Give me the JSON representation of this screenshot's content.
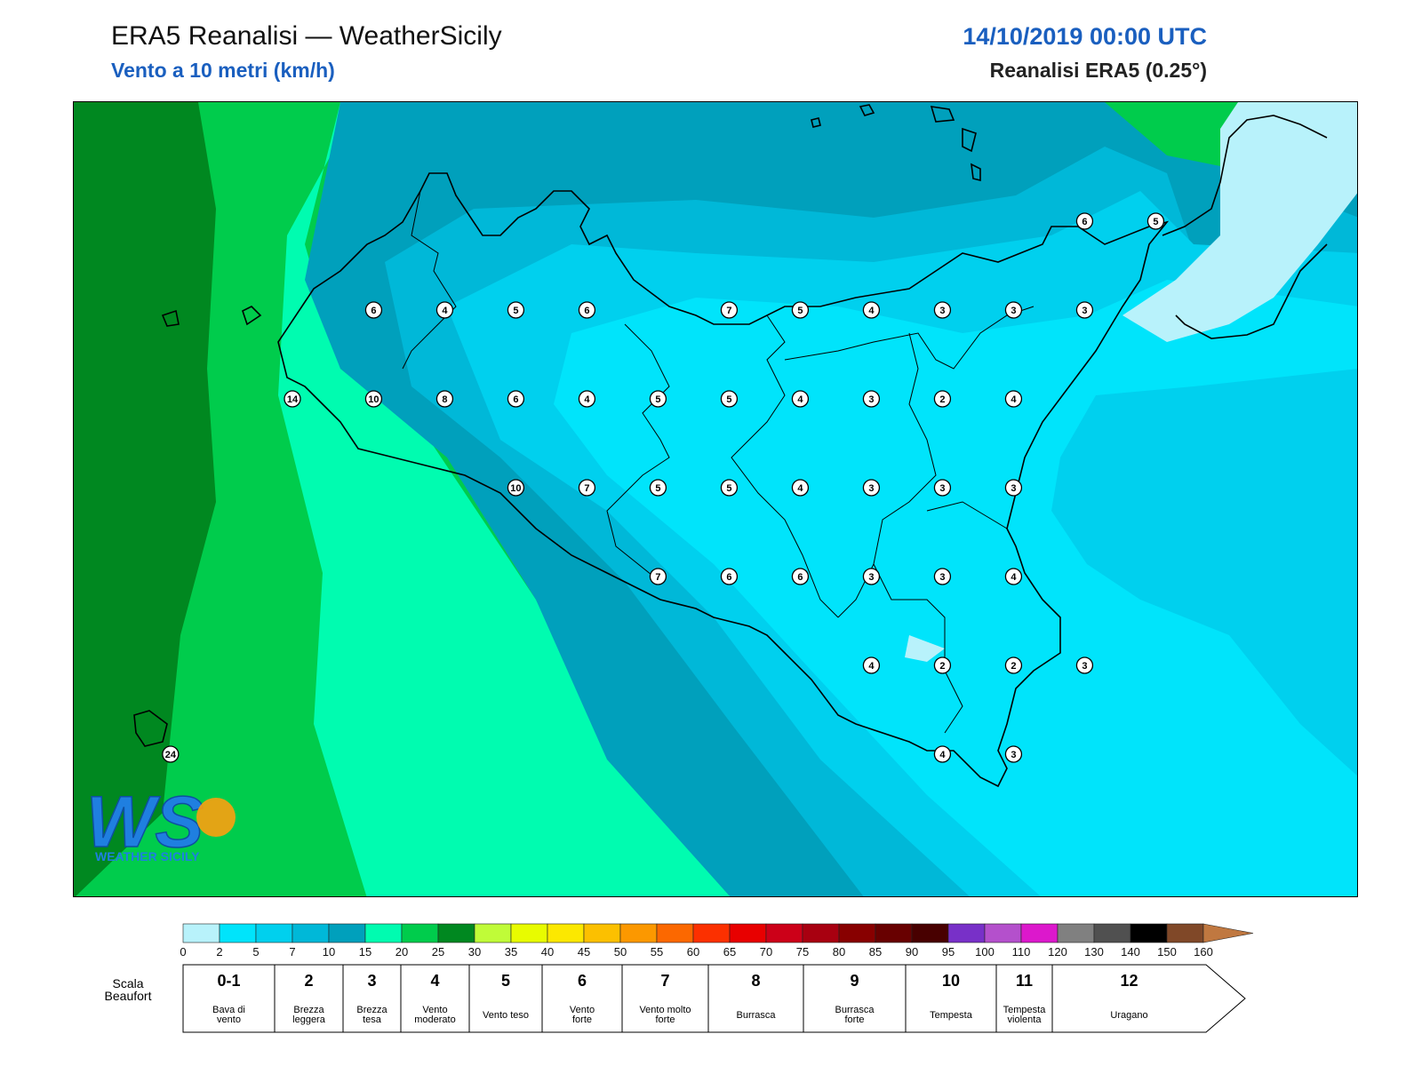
{
  "header": {
    "title": "ERA5 Reanalisi — WeatherSicily",
    "subtitle": "Vento a 10 metri (km/h)",
    "datetime": "14/10/2019 00:00 UTC",
    "source": "Reanalisi ERA5 (0.25°)"
  },
  "logo": {
    "text": "WS",
    "tagline": "WEATHER SICILY"
  },
  "stations": [
    {
      "v": 14,
      "lon": 12.5,
      "lat": 38.0
    },
    {
      "v": 6,
      "lon": 12.9,
      "lat": 38.25
    },
    {
      "v": 4,
      "lon": 13.25,
      "lat": 38.25
    },
    {
      "v": 5,
      "lon": 13.6,
      "lat": 38.25
    },
    {
      "v": 6,
      "lon": 13.95,
      "lat": 38.25
    },
    {
      "v": 7,
      "lon": 14.65,
      "lat": 38.25
    },
    {
      "v": 5,
      "lon": 15.0,
      "lat": 38.25
    },
    {
      "v": 4,
      "lon": 15.35,
      "lat": 38.25
    },
    {
      "v": 3,
      "lon": 15.7,
      "lat": 38.25
    },
    {
      "v": 3,
      "lon": 16.05,
      "lat": 38.25
    },
    {
      "v": 3,
      "lon": 16.4,
      "lat": 38.25
    },
    {
      "v": 6,
      "lon": 16.4,
      "lat": 38.5
    },
    {
      "v": 5,
      "lon": 16.75,
      "lat": 38.5
    },
    {
      "v": 10,
      "lon": 12.9,
      "lat": 38.0
    },
    {
      "v": 8,
      "lon": 13.25,
      "lat": 38.0
    },
    {
      "v": 6,
      "lon": 13.6,
      "lat": 38.0
    },
    {
      "v": 4,
      "lon": 13.95,
      "lat": 38.0
    },
    {
      "v": 5,
      "lon": 14.3,
      "lat": 38.0
    },
    {
      "v": 5,
      "lon": 14.65,
      "lat": 38.0
    },
    {
      "v": 4,
      "lon": 15.0,
      "lat": 38.0
    },
    {
      "v": 3,
      "lon": 15.35,
      "lat": 38.0
    },
    {
      "v": 2,
      "lon": 15.7,
      "lat": 38.0
    },
    {
      "v": 4,
      "lon": 16.05,
      "lat": 38.0
    },
    {
      "v": 10,
      "lon": 13.6,
      "lat": 37.75
    },
    {
      "v": 7,
      "lon": 13.95,
      "lat": 37.75
    },
    {
      "v": 5,
      "lon": 14.3,
      "lat": 37.75
    },
    {
      "v": 5,
      "lon": 14.65,
      "lat": 37.75
    },
    {
      "v": 4,
      "lon": 15.0,
      "lat": 37.75
    },
    {
      "v": 3,
      "lon": 15.35,
      "lat": 37.75
    },
    {
      "v": 3,
      "lon": 15.7,
      "lat": 37.75
    },
    {
      "v": 3,
      "lon": 16.05,
      "lat": 37.75
    },
    {
      "v": 7,
      "lon": 14.3,
      "lat": 37.5
    },
    {
      "v": 6,
      "lon": 14.65,
      "lat": 37.5
    },
    {
      "v": 6,
      "lon": 15.0,
      "lat": 37.5
    },
    {
      "v": 3,
      "lon": 15.35,
      "lat": 37.5
    },
    {
      "v": 3,
      "lon": 15.7,
      "lat": 37.5
    },
    {
      "v": 4,
      "lon": 16.05,
      "lat": 37.5
    },
    {
      "v": 4,
      "lon": 15.35,
      "lat": 37.25
    },
    {
      "v": 2,
      "lon": 15.7,
      "lat": 37.25
    },
    {
      "v": 2,
      "lon": 16.05,
      "lat": 37.25
    },
    {
      "v": 3,
      "lon": 16.4,
      "lat": 37.25
    },
    {
      "v": 4,
      "lon": 15.7,
      "lat": 37.0
    },
    {
      "v": 3,
      "lon": 16.05,
      "lat": 37.0
    },
    {
      "v": 24,
      "lon": 11.9,
      "lat": 37.0
    }
  ],
  "colorbar": {
    "levels": [
      0,
      2,
      5,
      7,
      10,
      15,
      20,
      25,
      30,
      35,
      40,
      45,
      50,
      55,
      60,
      65,
      70,
      75,
      80,
      85,
      90,
      95,
      100,
      110,
      120,
      130,
      140,
      150,
      160
    ],
    "labels": [
      "0",
      "2",
      "5",
      "7",
      "10",
      "15",
      "20",
      "25",
      "30",
      "35",
      "40",
      "45",
      "50",
      "55",
      "60",
      "65",
      "70",
      "75",
      "80",
      "85",
      "90",
      "95",
      "100",
      "110",
      "120",
      "130",
      "140",
      "150",
      "160"
    ],
    "colors": [
      "#b8f2fb",
      "#00e4fb",
      "#00d0ee",
      "#00b8d8",
      "#00a0bc",
      "#00fcb0",
      "#00cc4c",
      "#008820",
      "#c0fc38",
      "#e8fc00",
      "#fce800",
      "#fcc000",
      "#fc9800",
      "#fc6800",
      "#fc3000",
      "#e80000",
      "#cc0018",
      "#a80010",
      "#880000",
      "#680000",
      "#480000",
      "#7830c8",
      "#b450cc",
      "#dc18cc",
      "#808080",
      "#505050",
      "#000000",
      "#804828",
      "#c07840"
    ],
    "arrow_color": "#c07840"
  },
  "beaufort": {
    "scale_label_line1": "Scala",
    "scale_label_line2": "Beaufort",
    "items": [
      {
        "num": "0-1",
        "desc1": "Bava di",
        "desc2": "vento"
      },
      {
        "num": "2",
        "desc1": "Brezza",
        "desc2": "leggera"
      },
      {
        "num": "3",
        "desc1": "Brezza",
        "desc2": "tesa"
      },
      {
        "num": "4",
        "desc1": "Vento",
        "desc2": "moderato"
      },
      {
        "num": "5",
        "desc1": "Vento teso",
        "desc2": ""
      },
      {
        "num": "6",
        "desc1": "Vento",
        "desc2": "forte"
      },
      {
        "num": "7",
        "desc1": "Vento molto",
        "desc2": "forte"
      },
      {
        "num": "8",
        "desc1": "Burrasca",
        "desc2": ""
      },
      {
        "num": "9",
        "desc1": "Burrasca",
        "desc2": "forte"
      },
      {
        "num": "10",
        "desc1": "Tempesta",
        "desc2": ""
      },
      {
        "num": "11",
        "desc1": "Tempesta",
        "desc2": "violenta"
      },
      {
        "num": "12",
        "desc1": "Uragano",
        "desc2": ""
      }
    ]
  }
}
